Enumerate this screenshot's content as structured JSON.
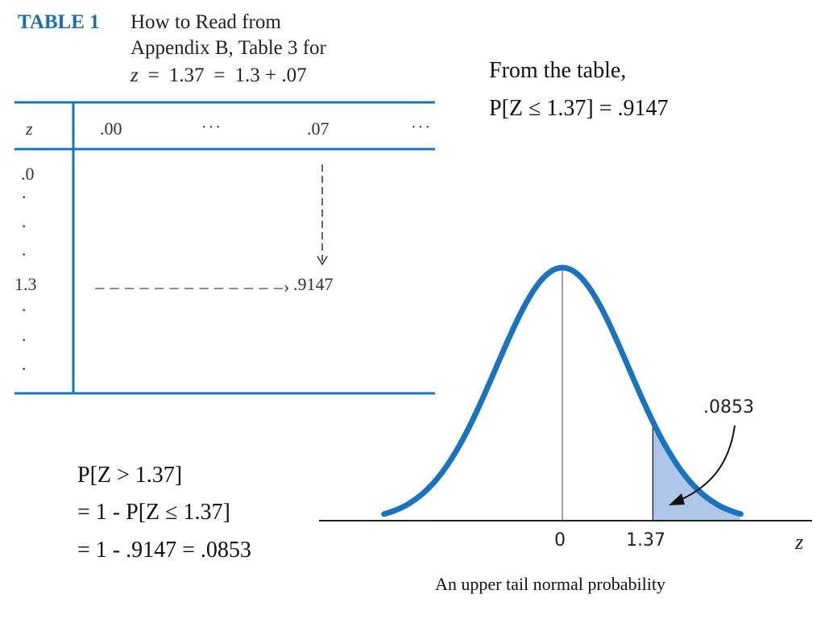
{
  "caption": {
    "label": "TABLE 1",
    "line1": "How to Read from",
    "line2": "Appendix B, Table 3 for",
    "z_var": "z",
    "equals": "=",
    "z_value": "1.37",
    "decomposition": "1.3 + .07"
  },
  "lookup_table": {
    "row_header": "z",
    "columns": [
      ".00",
      "···",
      ".07",
      "···"
    ],
    "rows": [
      ".0",
      "·",
      "·",
      "·",
      "1.3",
      "·",
      "·",
      "·"
    ],
    "result": ".9147"
  },
  "table_note": {
    "line1": "From the table,",
    "line2": "P[Z  ≤ 1.37] = .9147"
  },
  "calculation": {
    "line1": "P[Z > 1.37]",
    "line2": "= 1 - P[Z  ≤ 1.37]",
    "line3": "= 1 - .9147 = .0853"
  },
  "normal_plot": {
    "axis_ticks": [
      "0",
      "1.37"
    ],
    "axis_var": "z",
    "tail_area_label": ".0853",
    "caption": "An upper tail normal probability",
    "mean": 0,
    "std_dev": 1,
    "shade_from": 1.37,
    "curve_color": "#1a73c0",
    "shade_color": "#aec6e8"
  },
  "colors": {
    "accent": "#1a73c0",
    "table_rule": "#1a73c0",
    "label": "#1a6db2"
  }
}
